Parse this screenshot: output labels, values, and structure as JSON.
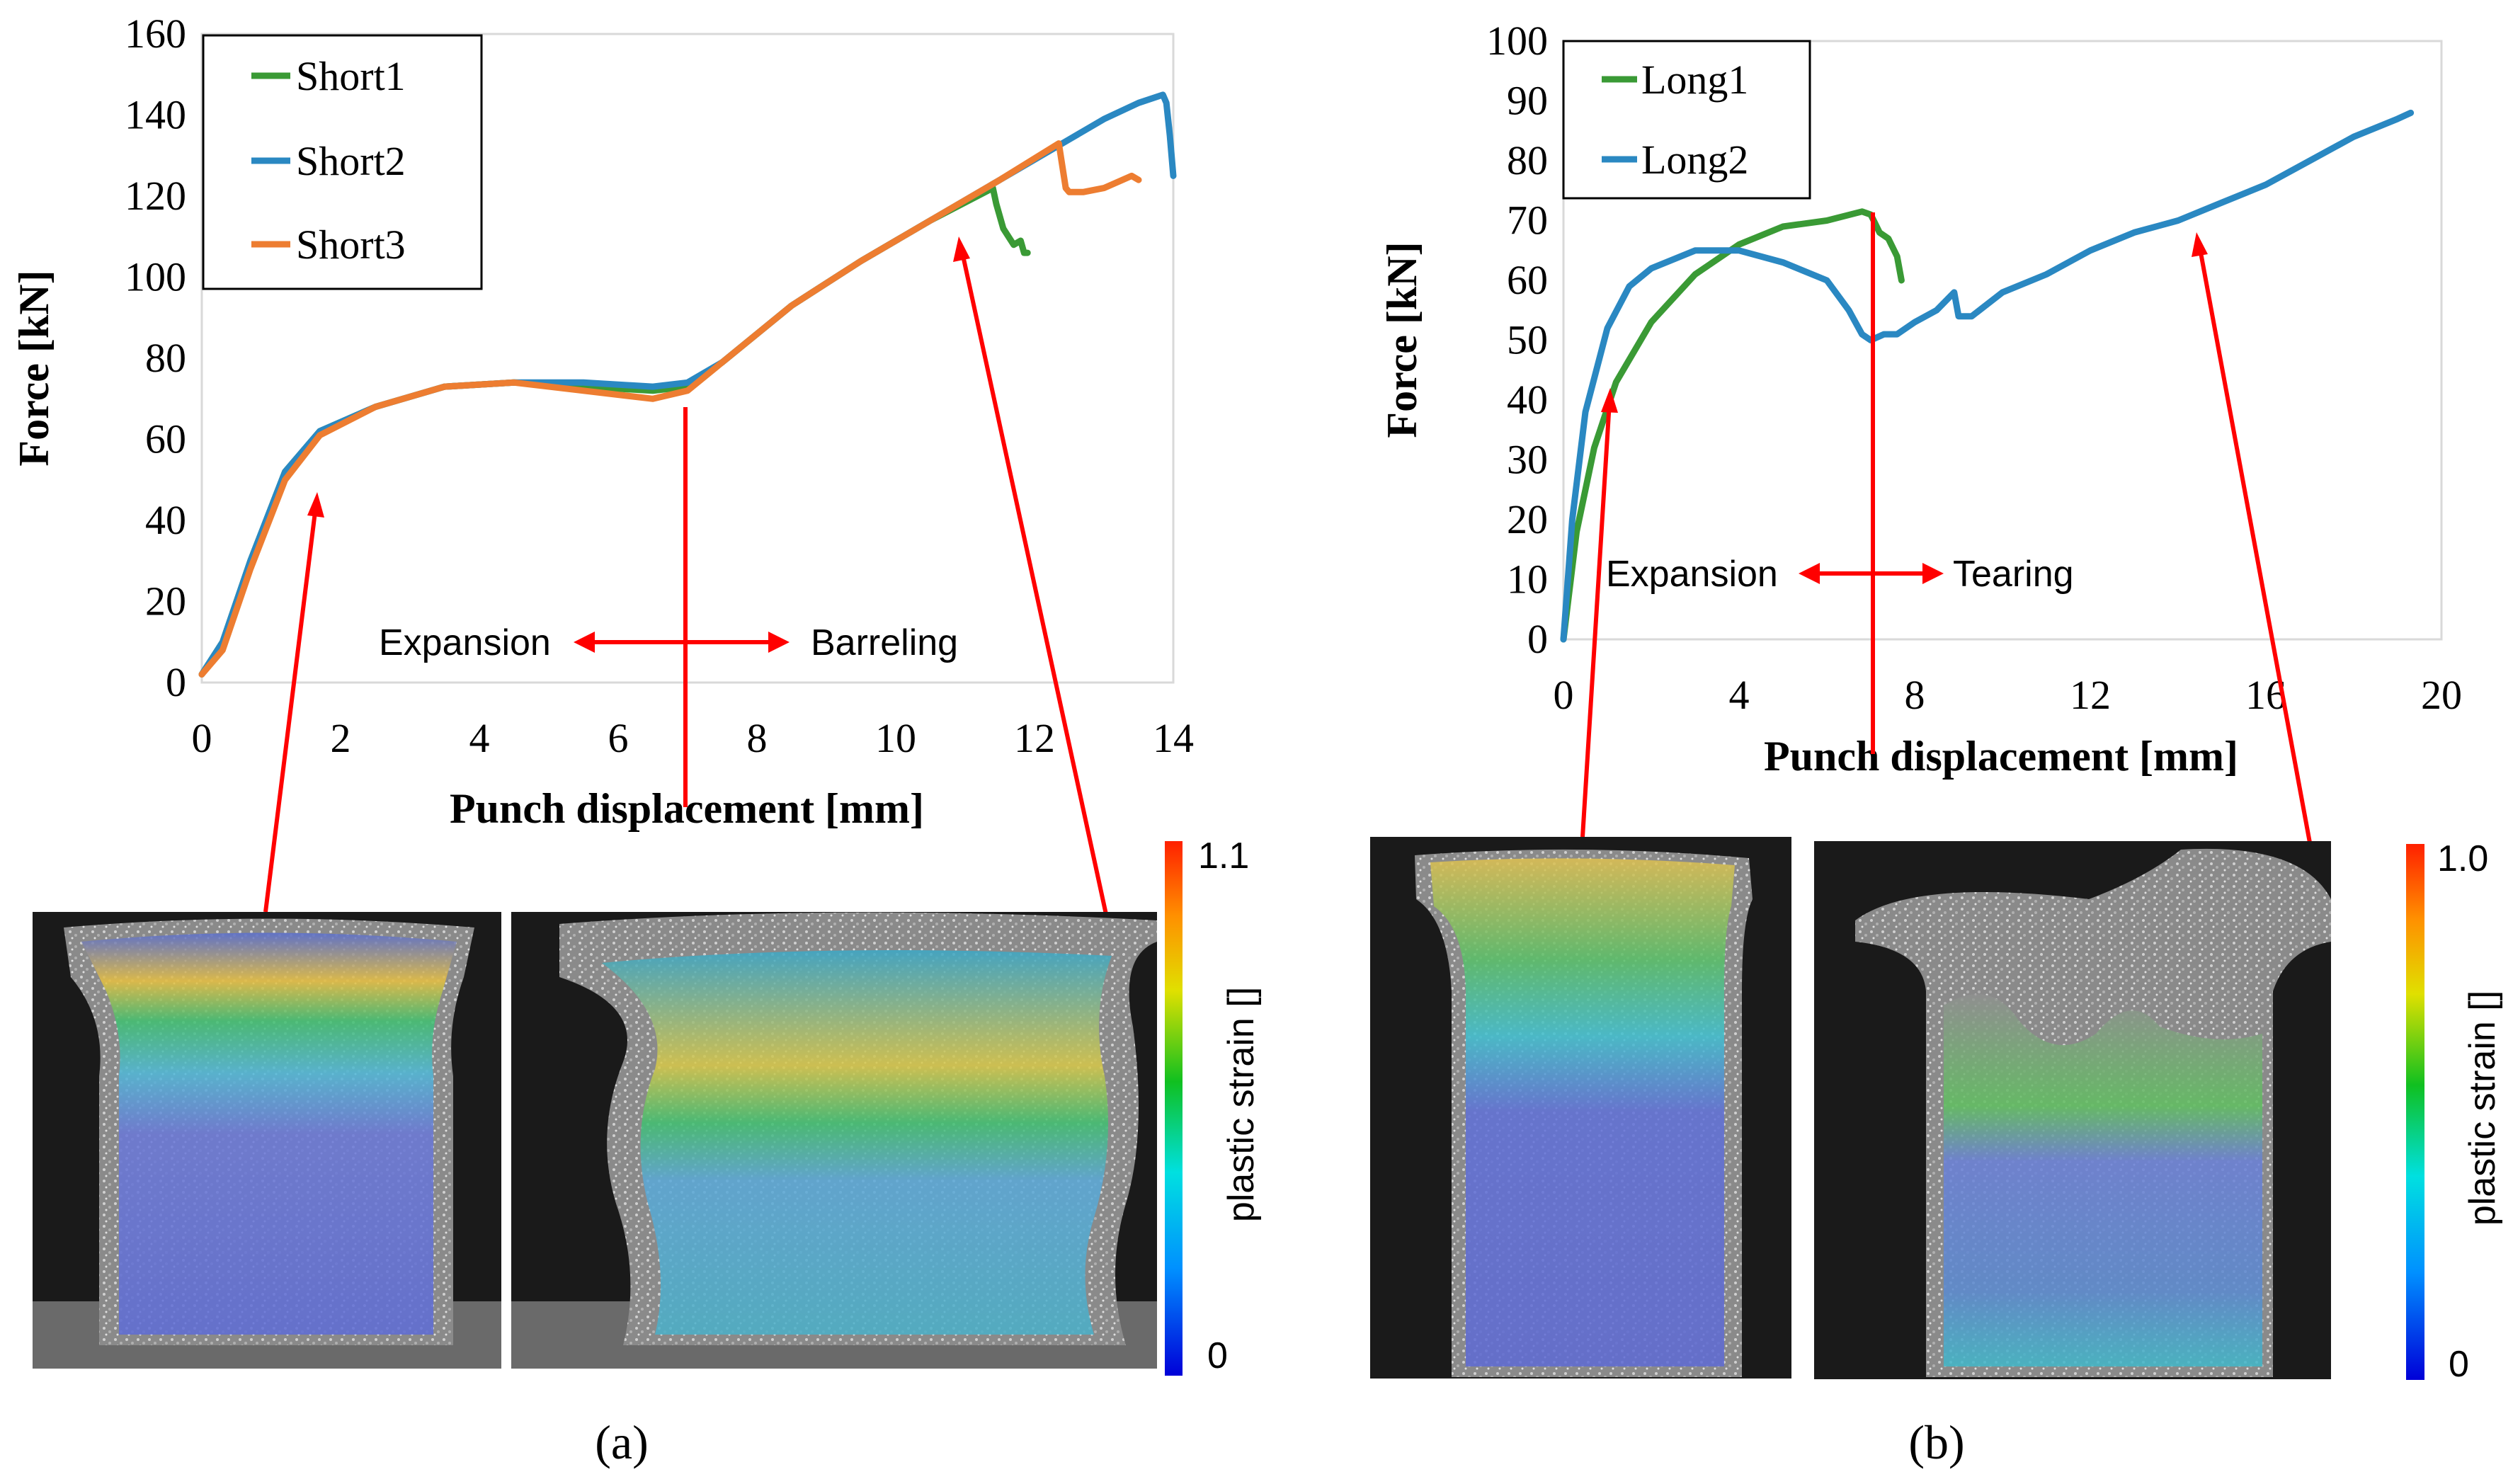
{
  "chart_data": [
    {
      "type": "line",
      "xlabel": "Punch displacement [mm]",
      "ylabel": "Force [kN]",
      "xlim": [
        0,
        14
      ],
      "ylim": [
        0,
        160
      ],
      "xticks": [
        "0",
        "2",
        "4",
        "6",
        "8",
        "10",
        "12",
        "14"
      ],
      "yticks": [
        "0",
        "20",
        "40",
        "60",
        "80",
        "100",
        "120",
        "140",
        "160"
      ],
      "legend_position": "top-left",
      "series": [
        {
          "name": "Short1",
          "color": "#3a9a35",
          "x": [
            0,
            0.3,
            0.7,
            1.2,
            1.7,
            2.5,
            3.5,
            4.5,
            5.5,
            6.5,
            7.0,
            7.5,
            8.5,
            9.5,
            10.5,
            11.4,
            11.45,
            11.55,
            11.7,
            11.8,
            11.85,
            11.9
          ],
          "y": [
            2,
            10,
            30,
            52,
            62,
            68,
            73,
            74,
            73,
            72,
            73,
            79,
            93,
            104,
            114,
            122,
            118,
            112,
            108,
            109,
            106,
            106
          ]
        },
        {
          "name": "Short2",
          "color": "#2a88c2",
          "x": [
            0,
            0.3,
            0.7,
            1.2,
            1.7,
            2.5,
            3.5,
            4.5,
            5.5,
            6.5,
            7.0,
            7.5,
            8.5,
            9.5,
            10.5,
            11.5,
            12.5,
            13.0,
            13.5,
            13.85,
            13.9,
            13.95,
            14.0
          ],
          "y": [
            2,
            10,
            30,
            52,
            62,
            68,
            73,
            74,
            74,
            73,
            74,
            79,
            93,
            104,
            114,
            124,
            134,
            139,
            143,
            145,
            143,
            135,
            125
          ]
        },
        {
          "name": "Short3",
          "color": "#ed7d31",
          "x": [
            0,
            0.3,
            0.7,
            1.2,
            1.7,
            2.5,
            3.5,
            4.5,
            5.5,
            6.5,
            7.0,
            7.5,
            8.5,
            9.5,
            10.5,
            11.5,
            12.35,
            12.45,
            12.5,
            12.7,
            13.0,
            13.4,
            13.5
          ],
          "y": [
            2,
            8,
            28,
            50,
            61,
            68,
            73,
            74,
            72,
            70,
            72,
            79,
            93,
            104,
            114,
            124,
            133,
            122,
            121,
            121,
            122,
            125,
            124
          ]
        }
      ],
      "annotations": {
        "left": "Expansion",
        "right": "Barreling"
      },
      "colorbar": {
        "max": "1.1",
        "min": "0",
        "label": "plastic strain []"
      },
      "panel_label": "(a)"
    },
    {
      "type": "line",
      "xlabel": "Punch displacement [mm]",
      "ylabel": "Force [kN]",
      "xlim": [
        0,
        20
      ],
      "ylim": [
        0,
        100
      ],
      "xticks": [
        "0",
        "4",
        "8",
        "12",
        "16",
        "20"
      ],
      "yticks": [
        "0",
        "10",
        "20",
        "30",
        "40",
        "50",
        "60",
        "70",
        "80",
        "90",
        "100"
      ],
      "legend_position": "top-left",
      "series": [
        {
          "name": "Long1",
          "color": "#3a9a35",
          "x": [
            0,
            0.3,
            0.7,
            1.2,
            2.0,
            3.0,
            4.0,
            5.0,
            6.0,
            6.8,
            7.0,
            7.2,
            7.4,
            7.6,
            7.7
          ],
          "y": [
            0,
            18,
            32,
            43,
            53,
            61,
            66,
            69,
            70,
            71.5,
            71,
            68,
            67,
            64,
            60
          ]
        },
        {
          "name": "Long2",
          "color": "#2a88c2",
          "x": [
            0,
            0.2,
            0.5,
            1.0,
            1.5,
            2.0,
            3.0,
            4.0,
            5.0,
            6.0,
            6.5,
            6.8,
            7.0,
            7.3,
            7.6,
            8.0,
            8.5,
            8.9,
            9.0,
            9.3,
            10.0,
            11.0,
            12.0,
            13.0,
            14.0,
            15.0,
            16.0,
            17.0,
            18.0,
            19.0,
            19.3
          ],
          "y": [
            0,
            20,
            38,
            52,
            59,
            62,
            65,
            65,
            63,
            60,
            55,
            51,
            50,
            51,
            51,
            53,
            55,
            58,
            54,
            54,
            58,
            61,
            65,
            68,
            70,
            73,
            76,
            80,
            84,
            87,
            88
          ]
        }
      ],
      "annotations": {
        "left": "Expansion",
        "right": "Tearing"
      },
      "colorbar": {
        "max": "1.0",
        "min": "0",
        "label": "plastic strain []"
      },
      "panel_label": "(b)"
    }
  ]
}
